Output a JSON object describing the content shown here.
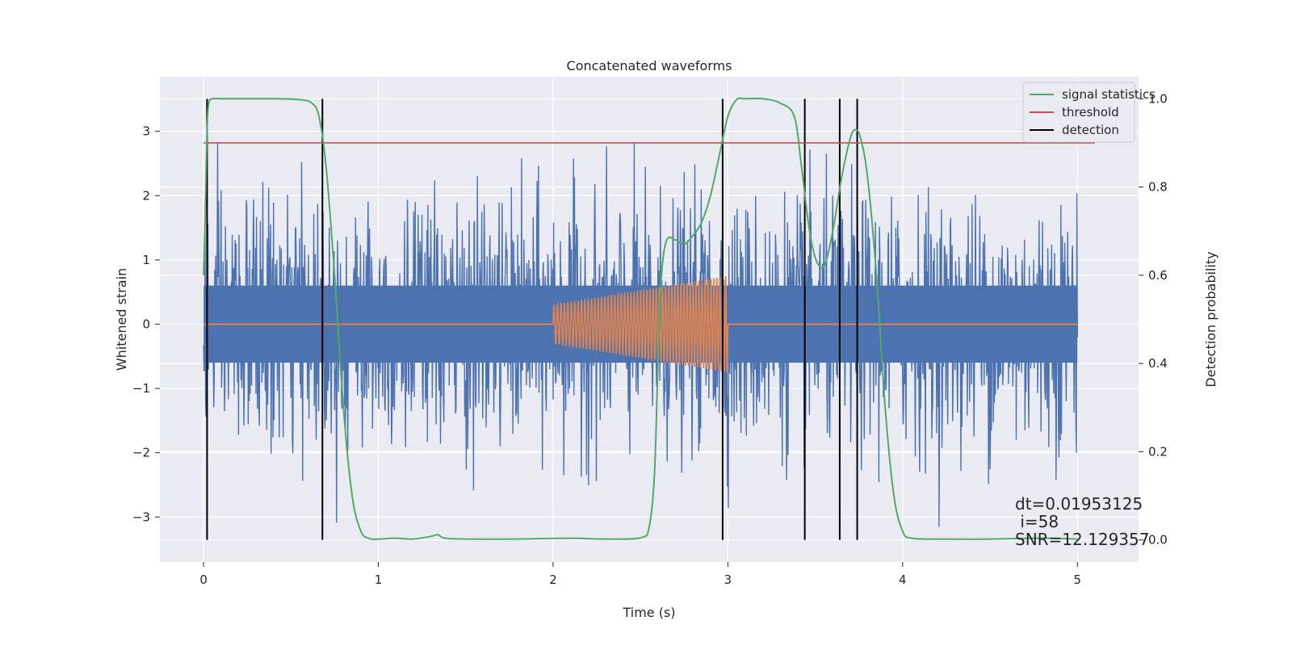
{
  "chart_data": {
    "type": "line",
    "title": "Concatenated waveforms",
    "xlabel": "Time (s)",
    "ylabel": "Whitened strain",
    "y2label": "Detection probability",
    "xlim": [
      -0.25,
      5.35
    ],
    "ylim": [
      -3.7,
      3.85
    ],
    "y2lim": [
      -0.05,
      1.05
    ],
    "x_ticks": [
      0,
      1,
      2,
      3,
      4,
      5
    ],
    "y_ticks": [
      -3,
      -2,
      -1,
      0,
      1,
      2,
      3
    ],
    "y2_ticks": [
      0.0,
      0.2,
      0.4,
      0.6,
      0.8,
      1.0
    ],
    "x_tick_labels": [
      "0",
      "1",
      "2",
      "3",
      "4",
      "5"
    ],
    "y_tick_labels": [
      "−3",
      "−2",
      "−1",
      "0",
      "1",
      "2",
      "3"
    ],
    "y2_tick_labels": [
      "0.0",
      "0.2",
      "0.4",
      "0.6",
      "0.8",
      "1.0"
    ],
    "grid": true,
    "legend_position": "top-right",
    "colors": {
      "background": "#eaeaf2",
      "grid": "#ffffff",
      "strain": "#4c72b0",
      "waveform": "#dd8452",
      "statistics": "#55a868",
      "threshold": "#c44e52",
      "detection": "#000000"
    },
    "series": [
      {
        "name": "",
        "axis": "left",
        "kind": "noise",
        "x_range": [
          0,
          5
        ],
        "dense_band": [
          -0.6,
          0.6
        ],
        "peak_min": -3.3,
        "peak_max": 3.55
      },
      {
        "name": "",
        "axis": "left",
        "kind": "chirp",
        "x_range": [
          2.0,
          3.0
        ],
        "amplitude_start": 0.3,
        "amplitude_end": 0.75,
        "baseline": 0
      },
      {
        "name": "signal statistics",
        "axis": "right",
        "x": [
          0,
          0.01,
          0.02,
          0.03,
          0.05,
          0.1,
          0.2,
          0.4,
          0.55,
          0.62,
          0.66,
          0.7,
          0.75,
          0.8,
          0.85,
          0.9,
          0.95,
          1.0,
          1.1,
          1.2,
          1.3,
          1.34,
          1.38,
          1.5,
          1.8,
          2.1,
          2.3,
          2.5,
          2.55,
          2.58,
          2.6,
          2.62,
          2.65,
          2.7,
          2.75,
          2.8,
          2.85,
          2.9,
          2.95,
          3.0,
          3.05,
          3.1,
          3.2,
          3.3,
          3.38,
          3.42,
          3.46,
          3.5,
          3.55,
          3.6,
          3.65,
          3.7,
          3.73,
          3.76,
          3.8,
          3.85,
          3.9,
          3.95,
          4.0,
          4.05,
          4.2,
          4.5,
          4.8,
          5.0
        ],
        "y": [
          0.6,
          0.75,
          0.93,
          0.99,
          1.0,
          1.0,
          1.0,
          1.0,
          0.998,
          0.99,
          0.96,
          0.85,
          0.6,
          0.3,
          0.1,
          0.02,
          0.003,
          0.002,
          0.004,
          0.002,
          0.008,
          0.012,
          0.004,
          0.002,
          0.002,
          0.004,
          0.002,
          0.005,
          0.03,
          0.15,
          0.4,
          0.6,
          0.68,
          0.68,
          0.67,
          0.69,
          0.72,
          0.78,
          0.87,
          0.96,
          0.998,
          1.0,
          1.0,
          0.99,
          0.96,
          0.85,
          0.72,
          0.64,
          0.62,
          0.7,
          0.82,
          0.91,
          0.93,
          0.91,
          0.82,
          0.6,
          0.3,
          0.1,
          0.02,
          0.004,
          0.002,
          0.002,
          0.004,
          0.002
        ]
      },
      {
        "name": "threshold",
        "axis": "right",
        "x": [
          0,
          5.1
        ],
        "y": [
          0.9,
          0.9
        ]
      },
      {
        "name": "detection",
        "axis": "right",
        "kind": "vlines",
        "x": [
          0.02,
          0.68,
          2.97,
          3.44,
          3.64,
          3.74
        ],
        "ymin": 0.0,
        "ymax": 1.0
      }
    ],
    "annotations": [
      "dt=0.01953125",
      " i=58",
      "SNR=12.129357"
    ]
  }
}
